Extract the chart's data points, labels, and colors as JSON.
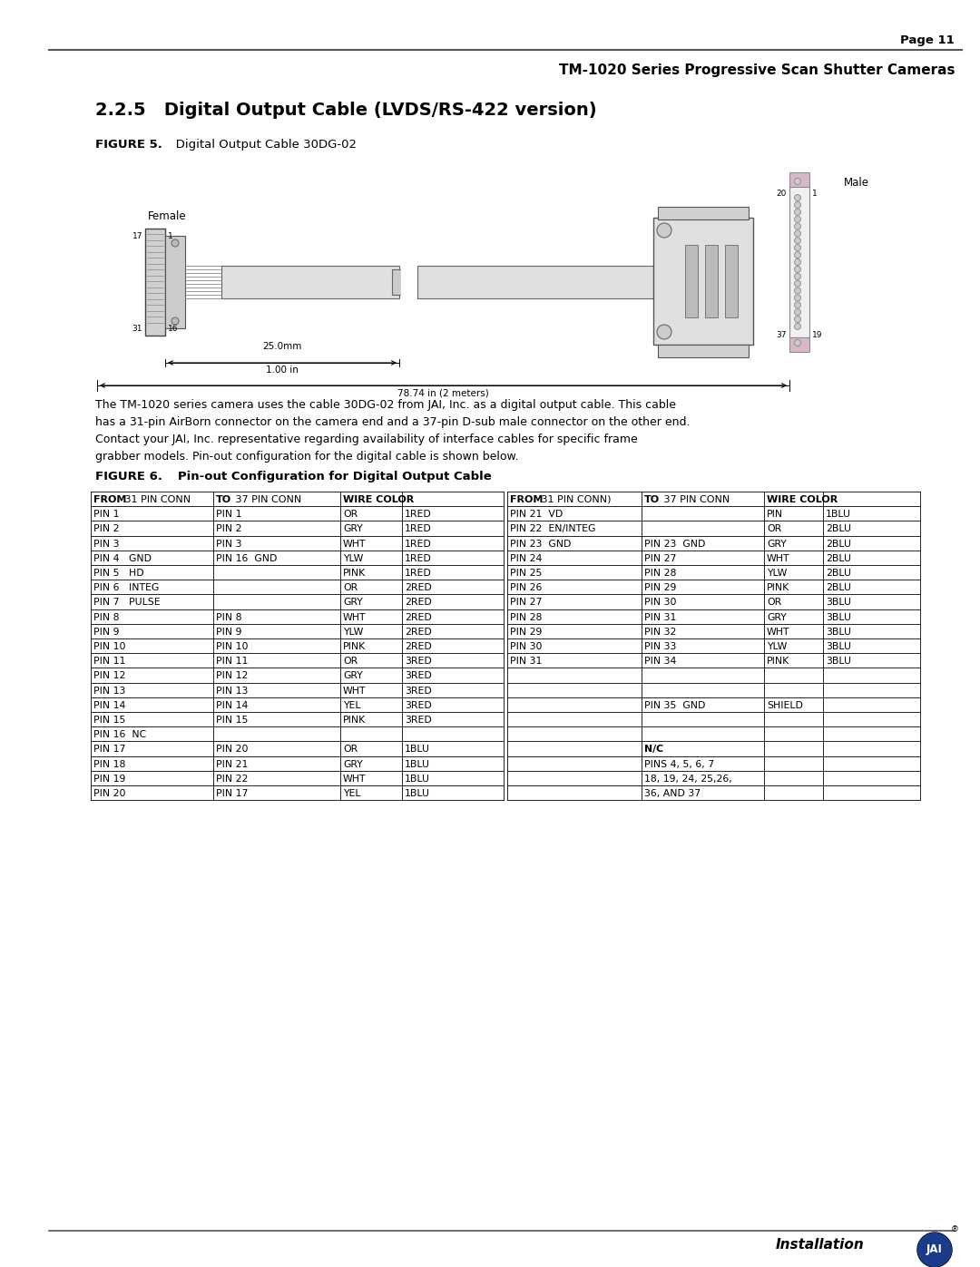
{
  "page_number": "Page 11",
  "header_line": "TM-1020 Series Progressive Scan Shutter Cameras",
  "section_title": "2.2.5   Digital Output Cable (LVDS/RS-422 version)",
  "figure5_label": "FIGURE 5.",
  "figure5_title": "   Digital Output Cable 30DG-02",
  "body_text": "The TM-1020 series camera uses the cable 30DG-02 from JAI, Inc. as a digital output cable. This cable\nhas a 31-pin AirBorn connector on the camera end and a 37-pin D-sub male connector on the other end.\nContact your JAI, Inc. representative regarding availability of interface cables for specific frame\ngrabber models. Pin-out configuration for the digital cable is shown below.",
  "figure6_label": "FIGURE 6.",
  "figure6_title": "   Pin-out Configuration for Digital Output Cable",
  "footer_text": "Installation",
  "bg_color": "#ffffff",
  "text_color": "#000000",
  "table_left_rows": [
    [
      "PIN 1",
      "PIN 1",
      "OR",
      "1RED"
    ],
    [
      "PIN 2",
      "PIN 2",
      "GRY",
      "1RED"
    ],
    [
      "PIN 3",
      "PIN 3",
      "WHT",
      "1RED"
    ],
    [
      "PIN 4   GND",
      "PIN 16  GND",
      "YLW",
      "1RED"
    ],
    [
      "PIN 5   HD",
      "",
      "PINK",
      "1RED"
    ],
    [
      "PIN 6   INTEG",
      "",
      "OR",
      "2RED"
    ],
    [
      "PIN 7   PULSE",
      "",
      "GRY",
      "2RED"
    ],
    [
      "PIN 8",
      "PIN 8",
      "WHT",
      "2RED"
    ],
    [
      "PIN 9",
      "PIN 9",
      "YLW",
      "2RED"
    ],
    [
      "PIN 10",
      "PIN 10",
      "PINK",
      "2RED"
    ],
    [
      "PIN 11",
      "PIN 11",
      "OR",
      "3RED"
    ],
    [
      "PIN 12",
      "PIN 12",
      "GRY",
      "3RED"
    ],
    [
      "PIN 13",
      "PIN 13",
      "WHT",
      "3RED"
    ],
    [
      "PIN 14",
      "PIN 14",
      "YEL",
      "3RED"
    ],
    [
      "PIN 15",
      "PIN 15",
      "PINK",
      "3RED"
    ],
    [
      "PIN 16  NC",
      "",
      "",
      ""
    ],
    [
      "PIN 17",
      "PIN 20",
      "OR",
      "1BLU"
    ],
    [
      "PIN 18",
      "PIN 21",
      "GRY",
      "1BLU"
    ],
    [
      "PIN 19",
      "PIN 22",
      "WHT",
      "1BLU"
    ],
    [
      "PIN 20",
      "PIN 17",
      "YEL",
      "1BLU"
    ]
  ],
  "table_right_rows": [
    [
      "PIN 21  VD",
      "",
      "PIN",
      "1BLU"
    ],
    [
      "PIN 22  EN/INTEG",
      "",
      "OR",
      "2BLU"
    ],
    [
      "PIN 23  GND",
      "PIN 23  GND",
      "GRY",
      "2BLU"
    ],
    [
      "PIN 24",
      "PIN 27",
      "WHT",
      "2BLU"
    ],
    [
      "PIN 25",
      "PIN 28",
      "YLW",
      "2BLU"
    ],
    [
      "PIN 26",
      "PIN 29",
      "PINK",
      "2BLU"
    ],
    [
      "PIN 27",
      "PIN 30",
      "OR",
      "3BLU"
    ],
    [
      "PIN 28",
      "PIN 31",
      "GRY",
      "3BLU"
    ],
    [
      "PIN 29",
      "PIN 32",
      "WHT",
      "3BLU"
    ],
    [
      "PIN 30",
      "PIN 33",
      "YLW",
      "3BLU"
    ],
    [
      "PIN 31",
      "PIN 34",
      "PINK",
      "3BLU"
    ],
    [
      "",
      "",
      "",
      ""
    ],
    [
      "",
      "",
      "",
      ""
    ],
    [
      "",
      "PIN 35  GND",
      "SHIELD",
      ""
    ],
    [
      "",
      "",
      "",
      ""
    ],
    [
      "",
      "",
      "",
      ""
    ],
    [
      "",
      "N/C",
      "",
      ""
    ],
    [
      "",
      "PINS 4, 5, 6, 7",
      "",
      ""
    ],
    [
      "",
      "18, 19, 24, 25,26,",
      "",
      ""
    ],
    [
      "",
      "36, AND 37",
      "",
      ""
    ]
  ]
}
